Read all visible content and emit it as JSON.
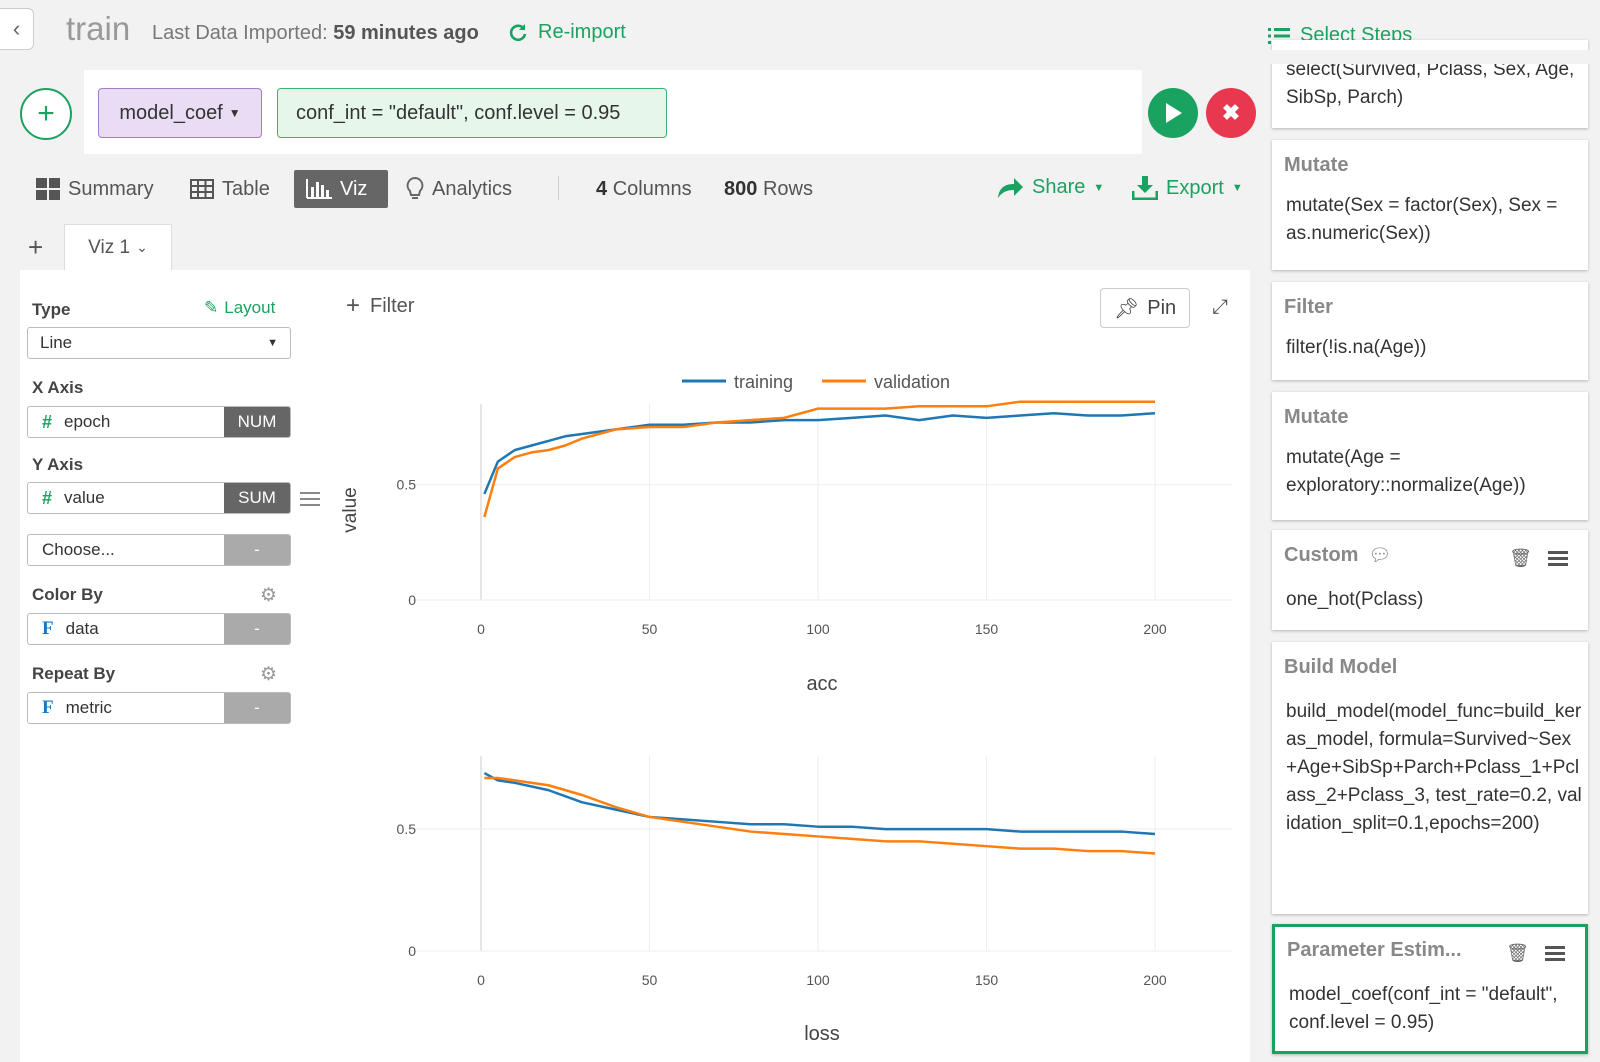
{
  "header": {
    "back_icon": "chevron-left-icon",
    "title": "train",
    "imported_label": "Last Data Imported:",
    "imported_value": "59 minutes ago",
    "reimport_label": "Re-import",
    "select_steps_label": "Select Steps"
  },
  "command": {
    "function": "model_coef",
    "arguments": "conf_int = \"default\", conf.level = 0.95"
  },
  "view_tabs": [
    {
      "label": "Summary",
      "icon": "grid-icon"
    },
    {
      "label": "Table",
      "icon": "table-icon"
    },
    {
      "label": "Viz",
      "icon": "bar-chart-icon",
      "active": true
    },
    {
      "label": "Analytics",
      "icon": "lightbulb-icon"
    }
  ],
  "counts": {
    "columns_value": "4",
    "columns_label": "Columns",
    "rows_value": "800",
    "rows_label": "Rows"
  },
  "actions": {
    "share": "Share",
    "export": "Export"
  },
  "viz_tab": {
    "label": "Viz 1"
  },
  "config": {
    "type_label": "Type",
    "layout_label": "Layout",
    "type_value": "Line",
    "x_axis_label": "X Axis",
    "x_field": "epoch",
    "x_type": "NUM",
    "y_axis_label": "Y Axis",
    "y_field": "value",
    "y_agg": "SUM",
    "choose_placeholder": "Choose...",
    "choose_type": "-",
    "color_by_label": "Color By",
    "color_field": "data",
    "color_type": "-",
    "repeat_by_label": "Repeat By",
    "repeat_field": "metric",
    "repeat_type": "-"
  },
  "chart_toolbar": {
    "filter": "Filter",
    "pin": "Pin"
  },
  "colors": {
    "accent": "#1aa260",
    "training": "#1f77b4",
    "validation": "#ff7f0e",
    "danger": "#e8384f"
  },
  "chart_data": [
    {
      "type": "line",
      "title": "acc",
      "xlabel": "",
      "ylabel": "value",
      "xlim": [
        0,
        200
      ],
      "ylim": [
        0,
        0.85
      ],
      "x_ticks": [
        0,
        50,
        100,
        150,
        200
      ],
      "y_ticks": [
        0,
        0.5
      ],
      "legend": "top-center",
      "series": [
        {
          "name": "training",
          "x": [
            1,
            5,
            10,
            15,
            20,
            25,
            30,
            40,
            50,
            60,
            70,
            80,
            90,
            100,
            110,
            120,
            130,
            140,
            150,
            160,
            170,
            180,
            190,
            200
          ],
          "y": [
            0.46,
            0.6,
            0.65,
            0.67,
            0.69,
            0.71,
            0.72,
            0.74,
            0.76,
            0.76,
            0.77,
            0.77,
            0.78,
            0.78,
            0.79,
            0.8,
            0.78,
            0.8,
            0.79,
            0.8,
            0.81,
            0.8,
            0.8,
            0.81
          ]
        },
        {
          "name": "validation",
          "x": [
            1,
            5,
            10,
            15,
            20,
            25,
            30,
            40,
            50,
            60,
            70,
            80,
            90,
            100,
            110,
            120,
            130,
            140,
            150,
            160,
            170,
            180,
            190,
            200
          ],
          "y": [
            0.36,
            0.57,
            0.62,
            0.64,
            0.65,
            0.67,
            0.7,
            0.74,
            0.75,
            0.75,
            0.77,
            0.78,
            0.79,
            0.83,
            0.83,
            0.83,
            0.84,
            0.84,
            0.84,
            0.86,
            0.86,
            0.86,
            0.86,
            0.86
          ]
        }
      ]
    },
    {
      "type": "line",
      "title": "loss",
      "xlabel": "",
      "ylabel": "",
      "xlim": [
        0,
        200
      ],
      "ylim": [
        0,
        0.8
      ],
      "x_ticks": [
        0,
        50,
        100,
        150,
        200
      ],
      "y_ticks": [
        0,
        0.5
      ],
      "series": [
        {
          "name": "training",
          "x": [
            1,
            5,
            10,
            20,
            30,
            40,
            50,
            60,
            70,
            80,
            90,
            100,
            110,
            120,
            130,
            140,
            150,
            160,
            170,
            180,
            190,
            200
          ],
          "y": [
            0.73,
            0.7,
            0.69,
            0.66,
            0.61,
            0.58,
            0.55,
            0.54,
            0.53,
            0.52,
            0.52,
            0.51,
            0.51,
            0.5,
            0.5,
            0.5,
            0.5,
            0.49,
            0.49,
            0.49,
            0.49,
            0.48
          ]
        },
        {
          "name": "validation",
          "x": [
            1,
            5,
            10,
            20,
            30,
            40,
            50,
            60,
            70,
            80,
            90,
            100,
            110,
            120,
            130,
            140,
            150,
            160,
            170,
            180,
            190,
            200
          ],
          "y": [
            0.71,
            0.71,
            0.7,
            0.68,
            0.64,
            0.59,
            0.55,
            0.53,
            0.51,
            0.49,
            0.48,
            0.47,
            0.46,
            0.45,
            0.45,
            0.44,
            0.43,
            0.42,
            0.42,
            0.41,
            0.41,
            0.4
          ]
        }
      ]
    }
  ],
  "steps": [
    {
      "title": "",
      "body": "select(Survived, Pclass, Sex, Age, SibSp, Parch)"
    },
    {
      "title": "Mutate",
      "body": "mutate(Sex = factor(Sex), Sex = as.numeric(Sex))"
    },
    {
      "title": "Filter",
      "body": "filter(!is.na(Age))"
    },
    {
      "title": "Mutate",
      "body": "mutate(Age = exploratory::normalize(Age))"
    },
    {
      "title": "Custom",
      "body": "one_hot(Pclass)"
    },
    {
      "title": "Build Model",
      "body": "build_model(model_func=build_keras_model, formula=Survived~Sex+Age+SibSp+Parch+Pclass_1+Pclass_2+Pclass_3, test_rate=0.2, validation_split=0.1,epochs=200)"
    },
    {
      "title": "Parameter Estim...",
      "body": "model_coef(conf_int = \"default\", conf.level = 0.95)"
    }
  ]
}
